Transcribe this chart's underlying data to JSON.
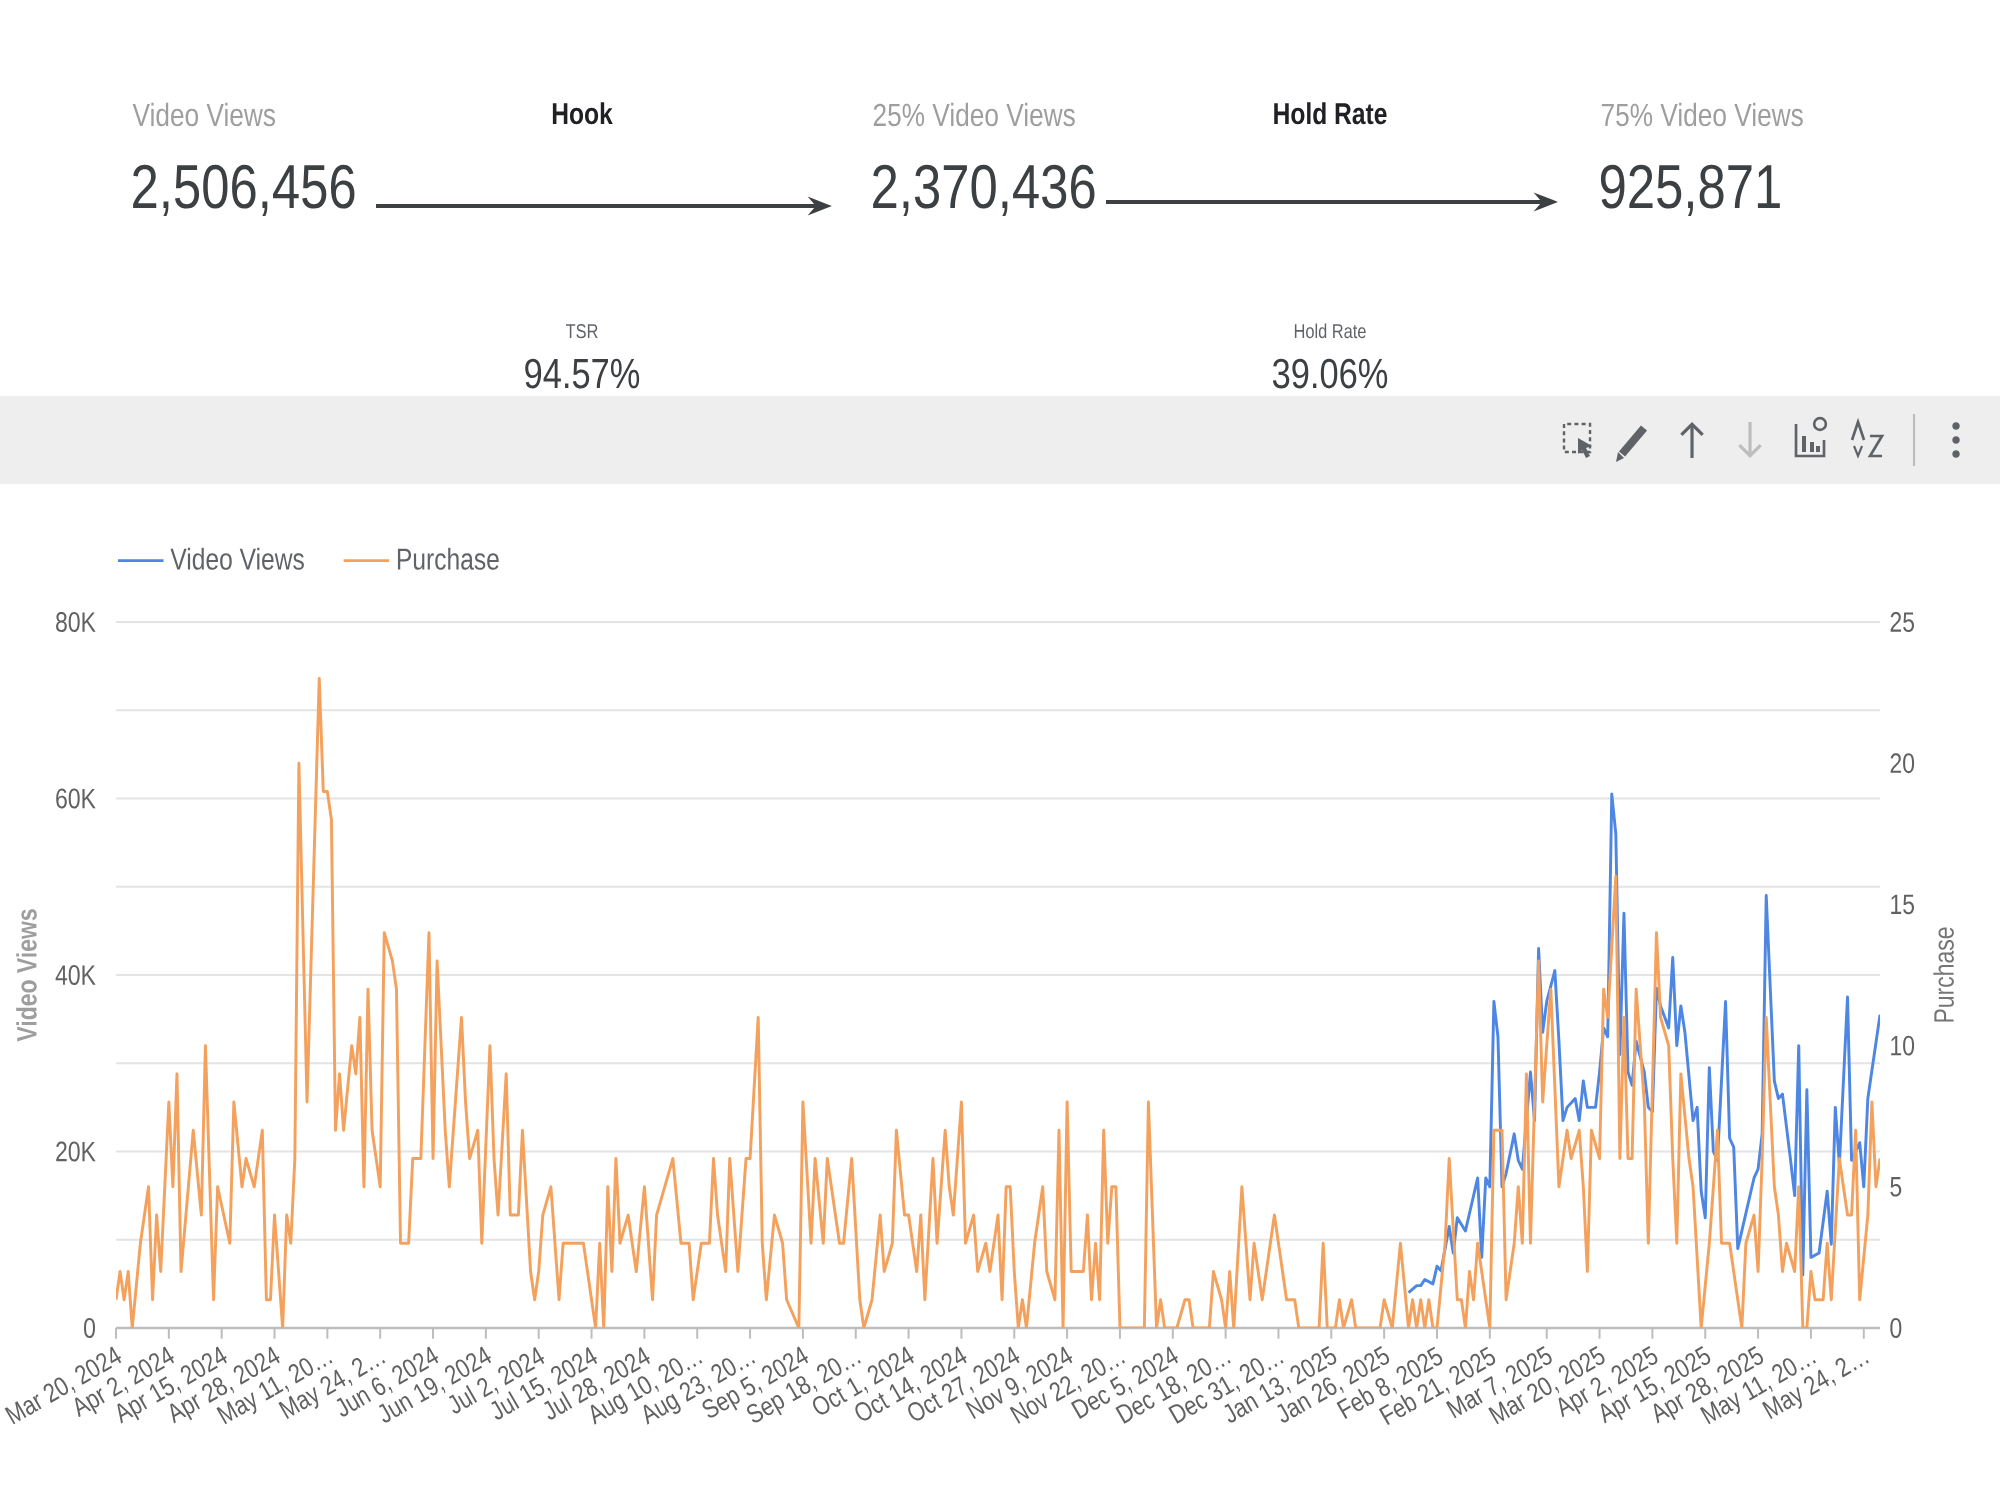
{
  "chart_data": [
    {
      "type": "other",
      "annotations": [
        "Video Views",
        "2,506,456",
        "Hook",
        "25% Video Views",
        "2,370,436",
        "Hold Rate",
        "75% Video Views",
        "925,871",
        "TSR",
        "94.57%",
        "Hold Rate",
        "39.06%"
      ]
    },
    {
      "type": "line",
      "ylabel": "Video Views",
      "y2label": "Purchase",
      "legend": "top left",
      "grid": "y",
      "marker": "none",
      "xlim": [
        "2024-03-20",
        "2025-05-28"
      ],
      "xticks": [
        {
          "value": "2024-03-20",
          "label": "Mar 20, 2024"
        },
        {
          "value": "2024-04-02",
          "label": "Apr 2, 2024"
        },
        {
          "value": "2024-04-15",
          "label": "Apr 15, 2024"
        },
        {
          "value": "2024-04-28",
          "label": "Apr 28, 2024"
        },
        {
          "value": "2024-05-11",
          "label": "May 11, 20…"
        },
        {
          "value": "2024-05-24",
          "label": "May 24, 2…"
        },
        {
          "value": "2024-06-06",
          "label": "Jun 6, 2024"
        },
        {
          "value": "2024-06-19",
          "label": "Jun 19, 2024"
        },
        {
          "value": "2024-07-02",
          "label": "Jul 2, 2024"
        },
        {
          "value": "2024-07-15",
          "label": "Jul 15, 2024"
        },
        {
          "value": "2024-07-28",
          "label": "Jul 28, 2024"
        },
        {
          "value": "2024-08-10",
          "label": "Aug 10, 20…"
        },
        {
          "value": "2024-08-23",
          "label": "Aug 23, 20…"
        },
        {
          "value": "2024-09-05",
          "label": "Sep 5, 2024"
        },
        {
          "value": "2024-09-18",
          "label": "Sep 18, 20…"
        },
        {
          "value": "2024-10-01",
          "label": "Oct 1, 2024"
        },
        {
          "value": "2024-10-14",
          "label": "Oct 14, 2024"
        },
        {
          "value": "2024-10-27",
          "label": "Oct 27, 2024"
        },
        {
          "value": "2024-11-09",
          "label": "Nov 9, 2024"
        },
        {
          "value": "2024-11-22",
          "label": "Nov 22, 20…"
        },
        {
          "value": "2024-12-05",
          "label": "Dec 5, 2024"
        },
        {
          "value": "2024-12-18",
          "label": "Dec 18, 20…"
        },
        {
          "value": "2024-12-31",
          "label": "Dec 31, 20…"
        },
        {
          "value": "2025-01-13",
          "label": "Jan 13, 2025"
        },
        {
          "value": "2025-01-26",
          "label": "Jan 26, 2025"
        },
        {
          "value": "2025-02-08",
          "label": "Feb 8, 2025"
        },
        {
          "value": "2025-02-21",
          "label": "Feb 21, 2025"
        },
        {
          "value": "2025-03-07",
          "label": "Mar 7, 2025"
        },
        {
          "value": "2025-03-20",
          "label": "Mar 20, 2025"
        },
        {
          "value": "2025-04-02",
          "label": "Apr 2, 2025"
        },
        {
          "value": "2025-04-15",
          "label": "Apr 15, 2025"
        },
        {
          "value": "2025-04-28",
          "label": "Apr 28, 2025"
        },
        {
          "value": "2025-05-11",
          "label": "May 11, 20…"
        },
        {
          "value": "2025-05-24",
          "label": "May 24, 2…"
        }
      ],
      "ylim": [
        0,
        80000
      ],
      "yticks": [
        0,
        {
          "value": 10000,
          "label": null
        },
        {
          "value": 20000,
          "label": "20K"
        },
        {
          "value": 30000,
          "label": null
        },
        {
          "value": 40000,
          "label": "40K"
        },
        {
          "value": 50000,
          "label": null
        },
        {
          "value": 60000,
          "label": "60K"
        },
        {
          "value": 70000,
          "label": null
        },
        {
          "value": 80000,
          "label": "80K"
        }
      ],
      "y2lim": [
        0,
        25
      ],
      "y2ticks": [
        0,
        5,
        10,
        15,
        20,
        25
      ],
      "series": [
        {
          "name": "Video Views",
          "color": "#4e86e3",
          "x": [
            "2025-02-01",
            "2025-02-03",
            "2025-02-04",
            "2025-02-05",
            "2025-02-07",
            "2025-02-08",
            "2025-02-09",
            "2025-02-11",
            "2025-02-12",
            "2025-02-13",
            "2025-02-15",
            "2025-02-16",
            "2025-02-18",
            "2025-02-19",
            "2025-02-20",
            "2025-02-21",
            "2025-02-22",
            "2025-02-23",
            "2025-02-24",
            "2025-02-25",
            "2025-02-27",
            "2025-02-28",
            "2025-03-01",
            "2025-03-03",
            "2025-03-04",
            "2025-03-05",
            "2025-03-06",
            "2025-03-07",
            "2025-03-09",
            "2025-03-10",
            "2025-03-11",
            "2025-03-12",
            "2025-03-14",
            "2025-03-15",
            "2025-03-16",
            "2025-03-17",
            "2025-03-19",
            "2025-03-20",
            "2025-03-21",
            "2025-03-22",
            "2025-03-23",
            "2025-03-24",
            "2025-03-25",
            "2025-03-26",
            "2025-03-27",
            "2025-03-28",
            "2025-03-29",
            "2025-03-31",
            "2025-04-01",
            "2025-04-02",
            "2025-04-03",
            "2025-04-04",
            "2025-04-06",
            "2025-04-07",
            "2025-04-08",
            "2025-04-09",
            "2025-04-10",
            "2025-04-12",
            "2025-04-13",
            "2025-04-14",
            "2025-04-15",
            "2025-04-16",
            "2025-04-17",
            "2025-04-18",
            "2025-04-20",
            "2025-04-21",
            "2025-04-22",
            "2025-04-23",
            "2025-04-25",
            "2025-04-27",
            "2025-04-28",
            "2025-04-29",
            "2025-04-30",
            "2025-05-02",
            "2025-05-03",
            "2025-05-04",
            "2025-05-06",
            "2025-05-07",
            "2025-05-08",
            "2025-05-09",
            "2025-05-10",
            "2025-05-11",
            "2025-05-13",
            "2025-05-15",
            "2025-05-16",
            "2025-05-17",
            "2025-05-18",
            "2025-05-20",
            "2025-05-21",
            "2025-05-23",
            "2025-05-24",
            "2025-05-25",
            "2025-05-28"
          ],
          "values": [
            4000,
            4800,
            4800,
            5500,
            5000,
            7000,
            6500,
            11500,
            8500,
            12500,
            11000,
            13000,
            17000,
            8000,
            17000,
            16000,
            37000,
            33000,
            16000,
            17500,
            22000,
            19000,
            18000,
            29000,
            23500,
            43000,
            33500,
            37000,
            40500,
            32500,
            23500,
            25000,
            26000,
            23500,
            28000,
            25000,
            25000,
            29000,
            34000,
            33000,
            60500,
            56000,
            31000,
            47000,
            29000,
            27500,
            32500,
            29000,
            25000,
            24500,
            38500,
            36500,
            34000,
            42000,
            32000,
            36500,
            33500,
            23500,
            25000,
            15500,
            12500,
            29500,
            20000,
            19000,
            37000,
            21500,
            20500,
            9000,
            13000,
            17000,
            18000,
            22000,
            49000,
            28000,
            26000,
            26500,
            19000,
            15000,
            32000,
            6000,
            27000,
            8000,
            8500,
            15500,
            9500,
            25000,
            18500,
            37500,
            19000,
            21000,
            16000,
            26000,
            35500
          ]
        },
        {
          "name": "Purchase",
          "color": "#f3a15c",
          "axis": "y2",
          "x": [
            "2024-03-20",
            "2024-03-21",
            "2024-03-22",
            "2024-03-23",
            "2024-03-24",
            "2024-03-26",
            "2024-03-28",
            "2024-03-29",
            "2024-03-30",
            "2024-03-31",
            "2024-04-02",
            "2024-04-03",
            "2024-04-04",
            "2024-04-05",
            "2024-04-08",
            "2024-04-10",
            "2024-04-11",
            "2024-04-13",
            "2024-04-14",
            "2024-04-17",
            "2024-04-18",
            "2024-04-20",
            "2024-04-21",
            "2024-04-23",
            "2024-04-25",
            "2024-04-26",
            "2024-04-27",
            "2024-04-28",
            "2024-04-30",
            "2024-05-01",
            "2024-05-02",
            "2024-05-03",
            "2024-05-04",
            "2024-05-06",
            "2024-05-09",
            "2024-05-10",
            "2024-05-11",
            "2024-05-12",
            "2024-05-13",
            "2024-05-14",
            "2024-05-15",
            "2024-05-17",
            "2024-05-18",
            "2024-05-19",
            "2024-05-20",
            "2024-05-21",
            "2024-05-22",
            "2024-05-24",
            "2024-05-25",
            "2024-05-27",
            "2024-05-28",
            "2024-05-29",
            "2024-05-31",
            "2024-06-01",
            "2024-06-03",
            "2024-06-05",
            "2024-06-06",
            "2024-06-07",
            "2024-06-09",
            "2024-06-10",
            "2024-06-13",
            "2024-06-14",
            "2024-06-15",
            "2024-06-17",
            "2024-06-18",
            "2024-06-20",
            "2024-06-21",
            "2024-06-22",
            "2024-06-24",
            "2024-06-25",
            "2024-06-27",
            "2024-06-28",
            "2024-06-30",
            "2024-07-01",
            "2024-07-02",
            "2024-07-03",
            "2024-07-05",
            "2024-07-07",
            "2024-07-08",
            "2024-07-13",
            "2024-07-15",
            "2024-07-16",
            "2024-07-17",
            "2024-07-18",
            "2024-07-19",
            "2024-07-20",
            "2024-07-21",
            "2024-07-22",
            "2024-07-24",
            "2024-07-26",
            "2024-07-28",
            "2024-07-30",
            "2024-07-31",
            "2024-08-02",
            "2024-08-04",
            "2024-08-06",
            "2024-08-08",
            "2024-08-09",
            "2024-08-11",
            "2024-08-13",
            "2024-08-14",
            "2024-08-15",
            "2024-08-17",
            "2024-08-18",
            "2024-08-20",
            "2024-08-22",
            "2024-08-23",
            "2024-08-25",
            "2024-08-26",
            "2024-08-27",
            "2024-08-29",
            "2024-08-31",
            "2024-09-01",
            "2024-09-04",
            "2024-09-05",
            "2024-09-07",
            "2024-09-08",
            "2024-09-10",
            "2024-09-11",
            "2024-09-12",
            "2024-09-14",
            "2024-09-15",
            "2024-09-17",
            "2024-09-19",
            "2024-09-20",
            "2024-09-22",
            "2024-09-24",
            "2024-09-25",
            "2024-09-27",
            "2024-09-28",
            "2024-09-30",
            "2024-10-01",
            "2024-10-03",
            "2024-10-04",
            "2024-10-05",
            "2024-10-07",
            "2024-10-08",
            "2024-10-10",
            "2024-10-11",
            "2024-10-12",
            "2024-10-14",
            "2024-10-15",
            "2024-10-17",
            "2024-10-18",
            "2024-10-20",
            "2024-10-21",
            "2024-10-23",
            "2024-10-24",
            "2024-10-25",
            "2024-10-26",
            "2024-10-27",
            "2024-10-28",
            "2024-10-29",
            "2024-10-30",
            "2024-11-01",
            "2024-11-03",
            "2024-11-04",
            "2024-11-06",
            "2024-11-07",
            "2024-11-08",
            "2024-11-09",
            "2024-11-10",
            "2024-11-13",
            "2024-11-14",
            "2024-11-15",
            "2024-11-16",
            "2024-11-17",
            "2024-11-18",
            "2024-11-19",
            "2024-11-20",
            "2024-11-21",
            "2024-11-22",
            "2024-11-28",
            "2024-11-29",
            "2024-12-01",
            "2024-12-02",
            "2024-12-03",
            "2024-12-06",
            "2024-12-08",
            "2024-12-09",
            "2024-12-10",
            "2024-12-14",
            "2024-12-15",
            "2024-12-17",
            "2024-12-18",
            "2024-12-19",
            "2024-12-20",
            "2024-12-22",
            "2024-12-24",
            "2024-12-25",
            "2024-12-26",
            "2024-12-27",
            "2024-12-29",
            "2024-12-30",
            "2025-01-01",
            "2025-01-02",
            "2025-01-04",
            "2025-01-05",
            "2025-01-10",
            "2025-01-11",
            "2025-01-12",
            "2025-01-14",
            "2025-01-15",
            "2025-01-16",
            "2025-01-18",
            "2025-01-19",
            "2025-01-25",
            "2025-01-26",
            "2025-01-28",
            "2025-01-30",
            "2025-02-01",
            "2025-02-02",
            "2025-02-03",
            "2025-02-04",
            "2025-02-05",
            "2025-02-06",
            "2025-02-07",
            "2025-02-08",
            "2025-02-10",
            "2025-02-11",
            "2025-02-13",
            "2025-02-14",
            "2025-02-15",
            "2025-02-16",
            "2025-02-17",
            "2025-02-18",
            "2025-02-20",
            "2025-02-21",
            "2025-02-22",
            "2025-02-24",
            "2025-02-25",
            "2025-02-27",
            "2025-02-28",
            "2025-03-01",
            "2025-03-02",
            "2025-03-03",
            "2025-03-05",
            "2025-03-06",
            "2025-03-07",
            "2025-03-08",
            "2025-03-10",
            "2025-03-12",
            "2025-03-13",
            "2025-03-15",
            "2025-03-16",
            "2025-03-17",
            "2025-03-18",
            "2025-03-20",
            "2025-03-21",
            "2025-03-22",
            "2025-03-24",
            "2025-03-25",
            "2025-03-26",
            "2025-03-27",
            "2025-03-28",
            "2025-03-29",
            "2025-03-31",
            "2025-04-01",
            "2025-04-03",
            "2025-04-04",
            "2025-04-06",
            "2025-04-07",
            "2025-04-08",
            "2025-04-09",
            "2025-04-11",
            "2025-04-12",
            "2025-04-14",
            "2025-04-16",
            "2025-04-18",
            "2025-04-19",
            "2025-04-21",
            "2025-04-23",
            "2025-04-24",
            "2025-04-25",
            "2025-04-27",
            "2025-04-28",
            "2025-04-29",
            "2025-04-30",
            "2025-05-02",
            "2025-05-03",
            "2025-05-04",
            "2025-05-05",
            "2025-05-07",
            "2025-05-08",
            "2025-05-09",
            "2025-05-10",
            "2025-05-11",
            "2025-05-12",
            "2025-05-14",
            "2025-05-15",
            "2025-05-16",
            "2025-05-18",
            "2025-05-20",
            "2025-05-21",
            "2025-05-22",
            "2025-05-23",
            "2025-05-25",
            "2025-05-26",
            "2025-05-27",
            "2025-05-28"
          ],
          "values": [
            1,
            2,
            1,
            2,
            0,
            3,
            5,
            1,
            4,
            2,
            8,
            5,
            9,
            2,
            7,
            4,
            10,
            1,
            5,
            3,
            8,
            5,
            6,
            5,
            7,
            1,
            1,
            4,
            0,
            4,
            3,
            6,
            20,
            8,
            23,
            19,
            19,
            18,
            7,
            9,
            7,
            10,
            9,
            11,
            5,
            12,
            7,
            5,
            14,
            13,
            12,
            3,
            3,
            6,
            6,
            14,
            6,
            13,
            7,
            5,
            11,
            8,
            6,
            7,
            3,
            10,
            6,
            4,
            9,
            4,
            4,
            7,
            2,
            1,
            2,
            4,
            5,
            1,
            3,
            3,
            1,
            0,
            3,
            0,
            5,
            2,
            6,
            3,
            4,
            2,
            5,
            1,
            4,
            5,
            6,
            3,
            3,
            1,
            3,
            3,
            6,
            4,
            2,
            6,
            2,
            6,
            6,
            11,
            3,
            1,
            4,
            3,
            1,
            0,
            8,
            3,
            6,
            3,
            6,
            5,
            3,
            3,
            6,
            1,
            0,
            1,
            4,
            2,
            3,
            7,
            4,
            4,
            2,
            4,
            1,
            6,
            3,
            7,
            5,
            4,
            8,
            3,
            4,
            2,
            3,
            2,
            4,
            1,
            5,
            5,
            2,
            0,
            1,
            0,
            3,
            5,
            2,
            1,
            7,
            0,
            8,
            2,
            2,
            4,
            1,
            3,
            1,
            7,
            3,
            5,
            5,
            0,
            0,
            8,
            0,
            1,
            0,
            0,
            1,
            1,
            0,
            0,
            2,
            1,
            0,
            2,
            0,
            5,
            1,
            3,
            2,
            1,
            3,
            4,
            2,
            1,
            1,
            0,
            0,
            3,
            0,
            0,
            1,
            0,
            1,
            0,
            0,
            1,
            0,
            3,
            0,
            1,
            0,
            1,
            0,
            1,
            0,
            0,
            3,
            6,
            1,
            1,
            0,
            2,
            1,
            3,
            1,
            0,
            7,
            7,
            1,
            3,
            5,
            3,
            9,
            3,
            13,
            8,
            10,
            12,
            5,
            7,
            6,
            7,
            5,
            2,
            7,
            6,
            12,
            11,
            16,
            6,
            11,
            6,
            6,
            12,
            8,
            3,
            14,
            11,
            10,
            6,
            3,
            9,
            6,
            5,
            0,
            3,
            7,
            3,
            3,
            1,
            0,
            3,
            4,
            2,
            6,
            11,
            5,
            4,
            2,
            3,
            2,
            5,
            0,
            0,
            2,
            1,
            1,
            3,
            1,
            6,
            4,
            4,
            7,
            1,
            4,
            8,
            5,
            6
          ]
        }
      ]
    }
  ]
}
